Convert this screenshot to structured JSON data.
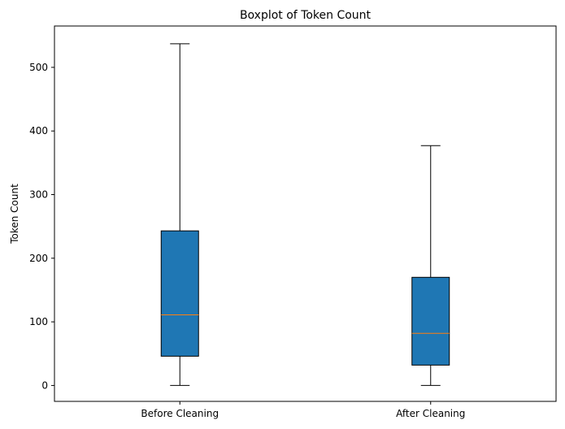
{
  "chart_data": {
    "type": "box",
    "title": "Boxplot of Token Count",
    "xlabel": "",
    "ylabel": "Token Count",
    "ylim": [
      -25,
      565
    ],
    "yticks": [
      0,
      100,
      200,
      300,
      400,
      500
    ],
    "grid": false,
    "box_fill_color": "#1f77b4",
    "median_color": "#ff7f0e",
    "categories": [
      "Before Cleaning",
      "After Cleaning"
    ],
    "boxes": [
      {
        "category": "Before Cleaning",
        "whisker_low": 0,
        "q1": 46,
        "median": 111,
        "q3": 243,
        "whisker_high": 537
      },
      {
        "category": "After Cleaning",
        "whisker_low": 0,
        "q1": 32,
        "median": 82,
        "q3": 170,
        "whisker_high": 377
      }
    ]
  }
}
